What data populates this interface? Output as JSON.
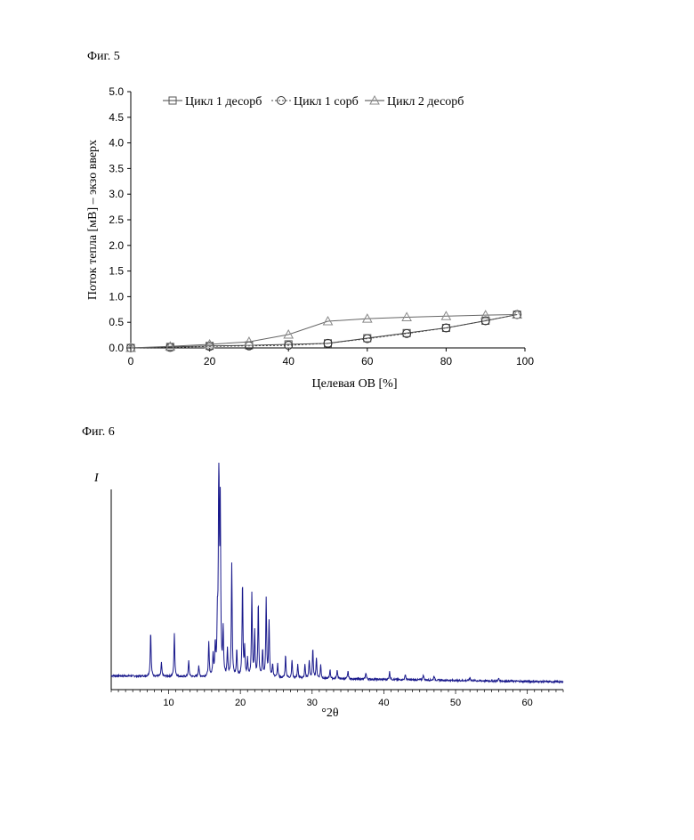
{
  "figures": {
    "fig5_label": "Фиг. 5",
    "fig6_label": "Фиг. 6"
  },
  "chart_data": [
    {
      "type": "line",
      "title": "",
      "xlabel": "Целевая ОВ [%]",
      "ylabel": "Поток тепла [мВ] – экзо вверх",
      "xlim": [
        0,
        100
      ],
      "ylim": [
        0,
        5
      ],
      "xticks": [
        "0",
        "20",
        "40",
        "60",
        "80",
        "100"
      ],
      "yticks": [
        "0.0",
        "0.5",
        "1.0",
        "1.5",
        "2.0",
        "2.5",
        "3.0",
        "3.5",
        "4.0",
        "4.5",
        "5.0"
      ],
      "legend_position": "top",
      "series": [
        {
          "name": "Цикл 1 десорб",
          "marker": "square",
          "line": "solid",
          "points": [
            [
              0,
              0.0
            ],
            [
              10,
              0.02
            ],
            [
              20,
              0.04
            ],
            [
              30,
              0.05
            ],
            [
              40,
              0.07
            ],
            [
              50,
              0.09
            ],
            [
              60,
              0.19
            ],
            [
              70,
              0.29
            ],
            [
              80,
              0.39
            ],
            [
              90,
              0.53
            ],
            [
              98,
              0.65
            ]
          ]
        },
        {
          "name": "Цикл 1 сорб",
          "marker": "circle",
          "line": "dotted",
          "points": [
            [
              0,
              0.0
            ],
            [
              10,
              0.01
            ],
            [
              20,
              0.03
            ],
            [
              30,
              0.04
            ],
            [
              40,
              0.05
            ],
            [
              50,
              0.09
            ],
            [
              60,
              0.18
            ],
            [
              70,
              0.28
            ],
            [
              80,
              0.39
            ],
            [
              90,
              0.53
            ],
            [
              98,
              0.65
            ]
          ]
        },
        {
          "name": "Цикл 2 десорб",
          "marker": "triangle",
          "line": "solid",
          "points": [
            [
              0,
              0.0
            ],
            [
              10,
              0.03
            ],
            [
              20,
              0.07
            ],
            [
              30,
              0.12
            ],
            [
              40,
              0.26
            ],
            [
              50,
              0.52
            ],
            [
              60,
              0.57
            ],
            [
              70,
              0.6
            ],
            [
              80,
              0.62
            ],
            [
              90,
              0.64
            ],
            [
              98,
              0.65
            ]
          ]
        }
      ]
    },
    {
      "type": "line",
      "title": "",
      "xlabel": "°2θ",
      "ylabel": "I",
      "xlim": [
        2,
        65
      ],
      "xticks": [
        "10",
        "20",
        "30",
        "40",
        "50",
        "60"
      ],
      "color": "#1a1a8c",
      "baseline": 0.05,
      "peaks": [
        [
          7.5,
          0.2
        ],
        [
          9.0,
          0.06
        ],
        [
          10.8,
          0.19
        ],
        [
          12.8,
          0.07
        ],
        [
          14.2,
          0.05
        ],
        [
          15.6,
          0.15
        ],
        [
          16.2,
          0.09
        ],
        [
          16.5,
          0.13
        ],
        [
          16.8,
          0.22
        ],
        [
          17.0,
          1.0
        ],
        [
          17.2,
          0.72
        ],
        [
          17.6,
          0.2
        ],
        [
          18.2,
          0.12
        ],
        [
          18.8,
          0.5
        ],
        [
          19.5,
          0.12
        ],
        [
          20.3,
          0.42
        ],
        [
          20.6,
          0.12
        ],
        [
          21.0,
          0.08
        ],
        [
          21.6,
          0.37
        ],
        [
          22.0,
          0.2
        ],
        [
          22.5,
          0.33
        ],
        [
          23.1,
          0.12
        ],
        [
          23.6,
          0.35
        ],
        [
          24.0,
          0.25
        ],
        [
          24.5,
          0.06
        ],
        [
          25.2,
          0.06
        ],
        [
          26.3,
          0.1
        ],
        [
          27.2,
          0.08
        ],
        [
          28.0,
          0.06
        ],
        [
          29.0,
          0.06
        ],
        [
          29.6,
          0.08
        ],
        [
          30.1,
          0.13
        ],
        [
          30.6,
          0.09
        ],
        [
          31.2,
          0.06
        ],
        [
          32.5,
          0.04
        ],
        [
          33.5,
          0.04
        ],
        [
          35.0,
          0.035
        ],
        [
          37.5,
          0.03
        ],
        [
          40.8,
          0.035
        ],
        [
          43.0,
          0.025
        ],
        [
          45.5,
          0.025
        ],
        [
          47.0,
          0.02
        ],
        [
          52.0,
          0.015
        ],
        [
          56.0,
          0.012
        ]
      ]
    }
  ]
}
